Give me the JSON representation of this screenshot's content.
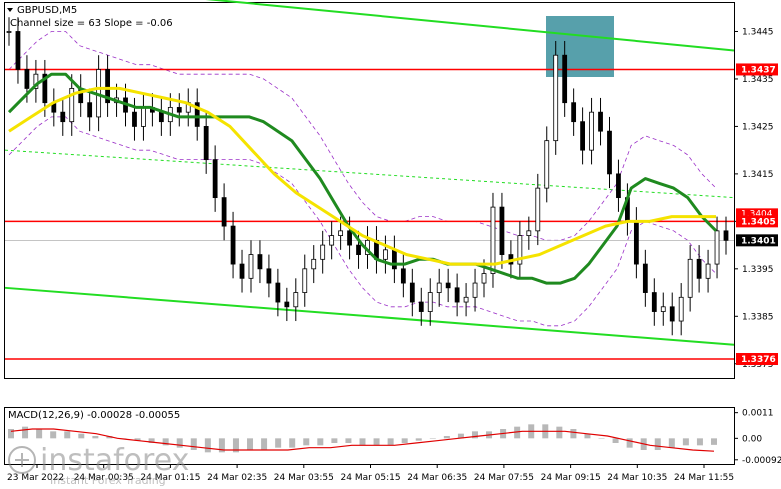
{
  "header": {
    "symbol_label": "GBPUSD,M5",
    "channel_label": "Channel size = 63 Slope = -0.06"
  },
  "macd_label": "MACD(12,26,9) -0.00028 -0.00055",
  "watermark": {
    "brand": "instaforex",
    "tagline": "Instant Forex Trading"
  },
  "chart_data": {
    "type": "line",
    "title": "",
    "price_axis": {
      "ylim": [
        1.3372,
        1.3451
      ],
      "ticks": [
        "1.3445",
        "1.3435",
        "1.3425",
        "1.3415",
        "1.3405",
        "1.3395",
        "1.3385",
        "1.3375"
      ],
      "tick_values": [
        1.3445,
        1.3435,
        1.3425,
        1.3415,
        1.3405,
        1.3395,
        1.3385,
        1.3375
      ]
    },
    "x_tick_labels": [
      "23 Mar 2022",
      "24 Mar 00:35",
      "24 Mar 01:15",
      "24 Mar 02:35",
      "24 Mar 03:55",
      "24 Mar 05:15",
      "24 Mar 06:35",
      "24 Mar 07:55",
      "24 Mar 09:15",
      "24 Mar 10:35",
      "24 Mar 11:55"
    ],
    "horizontal_levels": [
      {
        "value": 1.3437,
        "label": "1.3437",
        "color": "#ff0000"
      },
      {
        "value": 1.3405,
        "label": "1.3405",
        "color": "#ff0000"
      },
      {
        "value": 1.3376,
        "label": "1.3376",
        "color": "#ff0000"
      }
    ],
    "overlap_label": "1.3404",
    "current_price": {
      "value": 1.3401,
      "label": "1.3401"
    },
    "series": [
      {
        "name": "",
        "type": "close",
        "color": "#000000",
        "values": [
          1.3445,
          1.3437,
          1.3433,
          1.3436,
          1.343,
          1.3428,
          1.3426,
          1.3433,
          1.343,
          1.3427,
          1.3437,
          1.343,
          1.3431,
          1.3428,
          1.3425,
          1.3429,
          1.3428,
          1.3426,
          1.3429,
          1.3428,
          1.343,
          1.3425,
          1.3418,
          1.341,
          1.3404,
          1.3396,
          1.3393,
          1.3398,
          1.3395,
          1.3392,
          1.3388,
          1.3387,
          1.339,
          1.3395,
          1.3397,
          1.34,
          1.3402,
          1.3403,
          1.34,
          1.3398,
          1.3401,
          1.3397,
          1.3399,
          1.3395,
          1.3392,
          1.3388,
          1.3386,
          1.339,
          1.3392,
          1.3391,
          1.3388,
          1.3389,
          1.3392,
          1.3394,
          1.3408,
          1.3398,
          1.3396,
          1.3402,
          1.3403,
          1.3412,
          1.3422,
          1.344,
          1.343,
          1.3426,
          1.342,
          1.3428,
          1.3424,
          1.3415,
          1.341,
          1.3405,
          1.3396,
          1.339,
          1.3386,
          1.3387,
          1.3384,
          1.3389,
          1.3397,
          1.3393,
          1.3396,
          1.3403,
          1.3401
        ]
      },
      {
        "name": "",
        "type": "ma_slow",
        "color": "#1f8a1f",
        "values": [
          1.3428,
          1.3431,
          1.3434,
          1.3436,
          1.3436,
          1.3433,
          1.3432,
          1.3431,
          1.343,
          1.3429,
          1.3429,
          1.3428,
          1.3427,
          1.3427,
          1.3427,
          1.3427,
          1.3427,
          1.3427,
          1.3426,
          1.3424,
          1.3422,
          1.3418,
          1.3414,
          1.3409,
          1.3404,
          1.34,
          1.3397,
          1.3396,
          1.3396,
          1.3397,
          1.3397,
          1.3396,
          1.3396,
          1.3396,
          1.3395,
          1.3394,
          1.3393,
          1.3393,
          1.3392,
          1.3392,
          1.3393,
          1.3396,
          1.34,
          1.3404,
          1.3412,
          1.3414,
          1.3413,
          1.3412,
          1.341,
          1.3406,
          1.3403
        ]
      },
      {
        "name": "",
        "type": "ma_fast",
        "color": "#f5e300",
        "values": [
          1.3424,
          1.3427,
          1.343,
          1.3432,
          1.3433,
          1.3433,
          1.3432,
          1.3431,
          1.343,
          1.3428,
          1.3425,
          1.342,
          1.3415,
          1.3411,
          1.3408,
          1.3405,
          1.3402,
          1.34,
          1.3398,
          1.3397,
          1.3396,
          1.3396,
          1.3396,
          1.3397,
          1.3398,
          1.34,
          1.3402,
          1.3404,
          1.3405,
          1.3405,
          1.3406,
          1.3406,
          1.3406
        ]
      }
    ],
    "channel_top": {
      "start": 1.3452,
      "end": 1.3441,
      "color": "#22dd22"
    },
    "channel_bottom": {
      "start": 1.3391,
      "end": 1.3379,
      "color": "#22dd22"
    },
    "channel_mid": {
      "start": 1.342,
      "end": 1.341,
      "color": "#22dd22"
    },
    "macd": {
      "ylim": [
        -0.0011,
        0.0013
      ],
      "ticks": [
        "0.0011",
        "0.00",
        "-0.00092"
      ],
      "tick_values": [
        0.0011,
        0.0,
        -0.00092
      ],
      "histogram": [
        0.0004,
        0.0005,
        0.0004,
        0.0003,
        0.0003,
        0.0002,
        0.0001,
        0.0001,
        0.0,
        -0.0001,
        -0.0002,
        -0.0003,
        -0.0004,
        -0.0005,
        -0.0006,
        -0.0006,
        -0.0006,
        -0.0005,
        -0.0005,
        -0.0004,
        -0.0004,
        -0.0003,
        -0.0003,
        -0.0002,
        -0.0002,
        -0.0003,
        -0.0003,
        -0.0003,
        -0.0002,
        -0.0001,
        0.0,
        0.0001,
        0.0002,
        0.0003,
        0.0003,
        0.0004,
        0.0005,
        0.0006,
        0.0006,
        0.0005,
        0.0004,
        0.0002,
        0.0,
        -0.0002,
        -0.0004,
        -0.0005,
        -0.0005,
        -0.0004,
        -0.0003,
        -0.0003,
        -0.00028
      ],
      "signal": [
        0.0003,
        0.0004,
        0.0004,
        0.0003,
        0.0002,
        0.0,
        -0.0001,
        -0.0002,
        -0.0003,
        -0.0004,
        -0.0005,
        -0.0005,
        -0.0005,
        -0.0005,
        -0.0004,
        -0.0004,
        -0.0003,
        -0.0003,
        -0.0003,
        -0.0002,
        -0.0001,
        0.0,
        0.0001,
        0.0002,
        0.0003,
        0.0003,
        0.0003,
        0.0002,
        0.0001,
        -0.0001,
        -0.0003,
        -0.0004,
        -0.0005,
        -0.00055
      ]
    }
  }
}
